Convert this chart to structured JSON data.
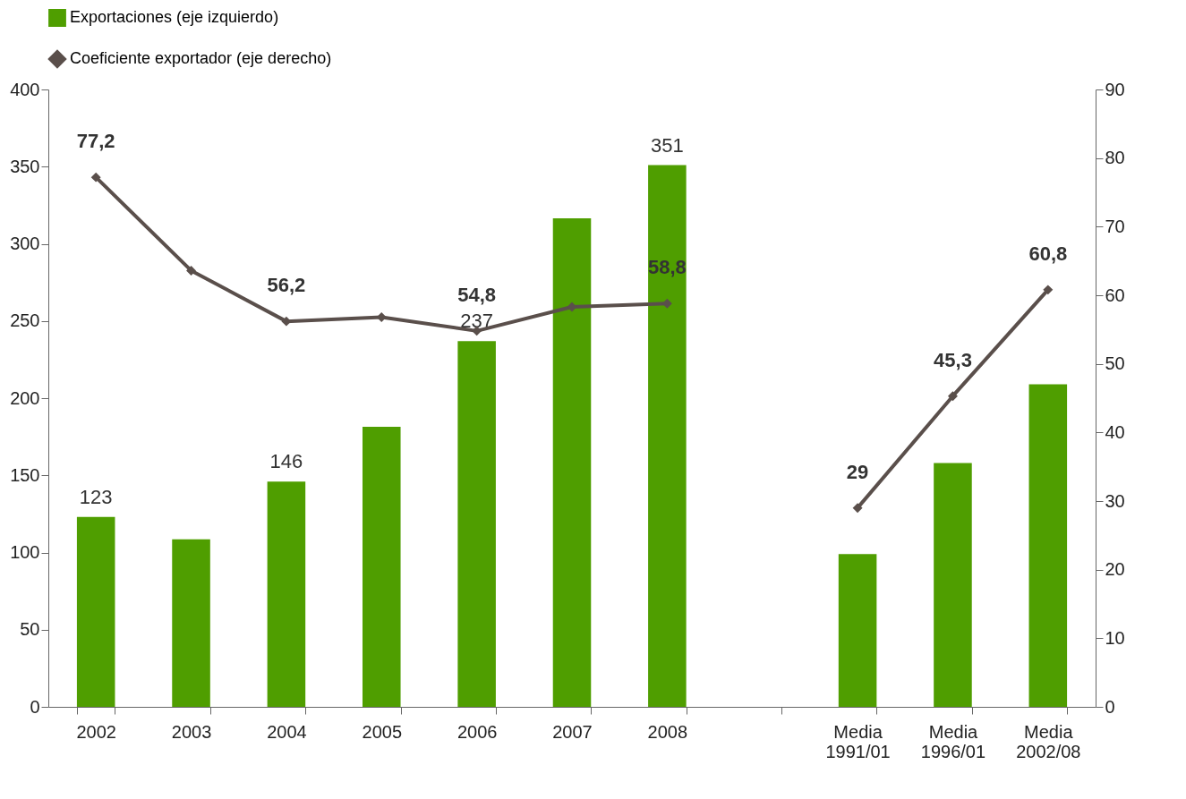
{
  "chart_data": {
    "type": "bar",
    "categories": [
      "2002",
      "2003",
      "2004",
      "2005",
      "2006",
      "2007",
      "2008",
      null,
      "Media 1991/01",
      "Media 1996/01",
      "Media 2002/08"
    ],
    "series": [
      {
        "name": "Exportaciones (eje izquierdo)",
        "color": "#4f9e00",
        "values": [
          123,
          108.5,
          146,
          181.5,
          237,
          316.5,
          351,
          null,
          99,
          158,
          209
        ],
        "value_labels": [
          "123",
          null,
          "146",
          null,
          "237",
          null,
          "351",
          null,
          null,
          null,
          null
        ]
      },
      {
        "name": "Coeficiente exportador (eje derecho)",
        "type": "line",
        "axis": "y2",
        "color": "#5a4f4b",
        "values": [
          77.2,
          63.6,
          56.2,
          56.8,
          54.8,
          58.3,
          58.8,
          null,
          29,
          45.3,
          60.8
        ],
        "value_labels": [
          "77,2",
          null,
          "56,2",
          null,
          "54,8",
          null,
          "58,8",
          null,
          "29",
          "45,3",
          "60,8"
        ]
      }
    ],
    "ylim": [
      0,
      400
    ],
    "yticks": [
      0,
      50,
      100,
      150,
      200,
      250,
      300,
      350,
      400
    ],
    "y2lim": [
      0,
      90
    ],
    "y2ticks": [
      0,
      10,
      20,
      30,
      40,
      50,
      60,
      70,
      80,
      90
    ],
    "marker": "diamond",
    "line_style": "solid",
    "grid": false,
    "legend": "top"
  }
}
